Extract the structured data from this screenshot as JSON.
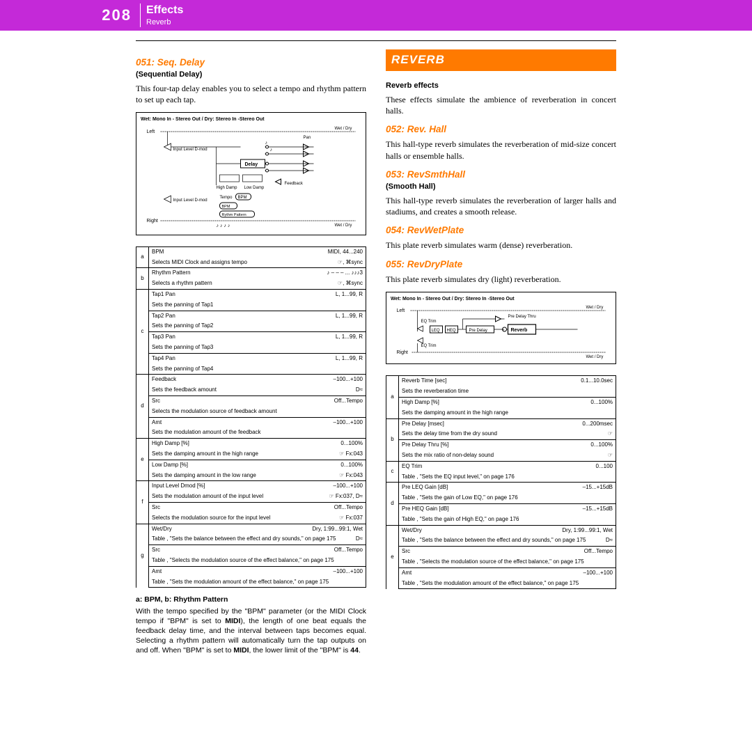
{
  "header": {
    "page_number": "208",
    "title": "Effects",
    "subtitle": "Reverb"
  },
  "colors": {
    "header_bg": "#c429d8",
    "accent": "#ff7a00",
    "text": "#000000",
    "bg": "#ffffff"
  },
  "left": {
    "effect_051": {
      "title": "051: Seq. Delay",
      "subtitle": "(Sequential Delay)"
    },
    "intro_051": "This four-tap delay enables you to select a tempo and rhythm pattern to set up each tap.",
    "diagram1": {
      "top_label": "Wet: Mono In - Stereo Out  /  Dry: Stereo In -Stereo Out",
      "left_label": "Left",
      "right_label": "Right",
      "wetdry": "Wet / Dry",
      "pan": "Pan",
      "input_dmod": "Input Level D-mod",
      "delay": "Delay",
      "hd": "High Damp",
      "ld": "Low Damp",
      "feedback": "Feedback",
      "tempo": "Tempo",
      "bpm": "BPM",
      "rhythm": "Rythm Pattern"
    },
    "table1": [
      {
        "idx": "a",
        "rows": [
          {
            "name": "BPM",
            "val": "MIDI, 44...240",
            "desc": "Selects MIDI Clock and assigns tempo",
            "note": "☞, ⌘sync"
          }
        ]
      },
      {
        "idx": "b",
        "rows": [
          {
            "name": "Rhythm Pattern",
            "val": "♪ – – – ... ♪♪♪3",
            "desc": "Selects a rhythm pattern",
            "note": "☞, ⌘sync"
          }
        ]
      },
      {
        "idx": "c",
        "rows": [
          {
            "name": "Tap1 Pan",
            "val": "L, 1...99, R",
            "desc": "Sets the panning of Tap1"
          },
          {
            "name": "Tap2 Pan",
            "val": "L, 1...99, R",
            "desc": "Sets the panning of Tap2"
          },
          {
            "name": "Tap3 Pan",
            "val": "L, 1...99, R",
            "desc": "Sets the panning of Tap3"
          },
          {
            "name": "Tap4 Pan",
            "val": "L, 1...99, R",
            "desc": "Sets the panning of Tap4"
          }
        ]
      },
      {
        "idx": "d",
        "rows": [
          {
            "name": "Feedback",
            "val": "–100...+100",
            "desc": "Sets the feedback amount",
            "note": "D≈"
          },
          {
            "name": "Src",
            "val": "Off...Tempo",
            "desc": "Selects the modulation source of feedback amount"
          },
          {
            "name": "Amt",
            "val": "–100...+100",
            "desc": "Sets the modulation amount of the feedback"
          }
        ]
      },
      {
        "idx": "e",
        "rows": [
          {
            "name": "High Damp [%]",
            "val": "0...100%",
            "desc": "Sets the damping amount in the high range",
            "note": "☞ Fx:043"
          },
          {
            "name": "Low Damp [%]",
            "val": "0...100%",
            "desc": "Sets the damping amount in the low range",
            "note": "☞ Fx:043"
          }
        ]
      },
      {
        "idx": "f",
        "rows": [
          {
            "name": "Input Level Dmod [%]",
            "val": "–100...+100",
            "desc": "Sets the modulation amount of the input level",
            "note": "☞ Fx:037, D≈"
          },
          {
            "name": "Src",
            "val": "Off...Tempo",
            "desc": "Selects the modulation source for the input level",
            "note": "☞ Fx:037"
          }
        ]
      },
      {
        "idx": "g",
        "rows": [
          {
            "name": "Wet/Dry",
            "val": "Dry, 1:99...99:1, Wet",
            "desc": "Table , \"Sets the balance between the effect and dry sounds,\" on page 175",
            "note": "D≈"
          },
          {
            "name": "Src",
            "val": "Off...Tempo",
            "desc": "Table , \"Selects the modulation source of the effect balance,\" on page 175"
          },
          {
            "name": "Amt",
            "val": "–100...+100",
            "desc": "Table , \"Sets the modulation amount of the effect balance,\" on page 175"
          }
        ]
      }
    ],
    "note": {
      "head": "a: BPM, b: Rhythm Pattern",
      "body": "With the tempo specified by the \"BPM\" parameter (or the MIDI Clock tempo if \"BPM\" is set to MIDI), the length of one beat equals the feedback delay time, and the interval between taps becomes equal. Selecting a rhythm pattern will automatically turn the tap outputs on and off. When \"BPM\" is set to MIDI, the lower limit of the \"BPM\" is 44."
    }
  },
  "right": {
    "banner": "REVERB",
    "reverb_head": "Reverb effects",
    "reverb_body": "These effects simulate the ambience of reverberation in concert halls.",
    "e052": {
      "title": "052: Rev. Hall",
      "body": "This hall-type reverb simulates the reverberation of mid-size concert halls or ensemble halls."
    },
    "e053": {
      "title": "053: RevSmthHall",
      "subtitle": "(Smooth Hall)",
      "body": "This hall-type reverb simulates the reverberation of larger halls and stadiums, and creates a smooth release."
    },
    "e054": {
      "title": "054: RevWetPlate",
      "body": "This plate reverb simulates warm (dense) reverberation."
    },
    "e055": {
      "title": "055: RevDryPlate",
      "body": "This plate reverb simulates dry (light) reverberation."
    },
    "diagram2": {
      "top_label": "Wet: Mono In - Stereo Out  /  Dry: Stereo In -Stereo Out",
      "left_label": "Left",
      "right_label": "Right",
      "wetdry": "Wet / Dry",
      "eq_trim": "EQ Trim",
      "leq": "LEQ",
      "heq": "HEQ",
      "pre_delay": "Pre Delay",
      "pre_delay_thru": "Pre Delay Thru",
      "reverb": "Reverb"
    },
    "table2": [
      {
        "idx": "a",
        "rows": [
          {
            "name": "Reverb Time [sec]",
            "val": "0.1...10.0sec",
            "desc": "Sets the reverberation time"
          },
          {
            "name": "High Damp [%]",
            "val": "0...100%",
            "desc": "Sets the damping amount in the high range"
          }
        ]
      },
      {
        "idx": "b",
        "rows": [
          {
            "name": "Pre Delay [msec]",
            "val": "0...200msec",
            "desc": "Sets the delay time from the dry sound",
            "note": "☞"
          },
          {
            "name": "Pre Delay Thru [%]",
            "val": "0...100%",
            "desc": "Sets the mix ratio of non-delay sound",
            "note": "☞"
          }
        ]
      },
      {
        "idx": "c",
        "rows": [
          {
            "name": "EQ Trim",
            "val": "0...100",
            "desc": "Table , \"Sets the EQ input level,\" on page 176"
          }
        ]
      },
      {
        "idx": "d",
        "rows": [
          {
            "name": "Pre LEQ Gain [dB]",
            "val": "–15...+15dB",
            "desc": "Table , \"Sets the gain of Low EQ,\" on page 176"
          },
          {
            "name": "Pre HEQ Gain [dB]",
            "val": "–15...+15dB",
            "desc": "Table , \"Sets the gain of High EQ,\" on page 176"
          }
        ]
      },
      {
        "idx": "e",
        "rows": [
          {
            "name": "Wet/Dry",
            "val": "Dry, 1:99...99:1, Wet",
            "desc": "Table , \"Sets the balance between the effect and dry sounds,\" on page 175",
            "note": "D≈"
          },
          {
            "name": "Src",
            "val": "Off...Tempo",
            "desc": "Table , \"Selects the modulation source of the effect balance,\" on page 175"
          },
          {
            "name": "Amt",
            "val": "–100...+100",
            "desc": "Table , \"Sets the modulation amount of the effect balance,\" on page 175"
          }
        ]
      }
    ]
  }
}
